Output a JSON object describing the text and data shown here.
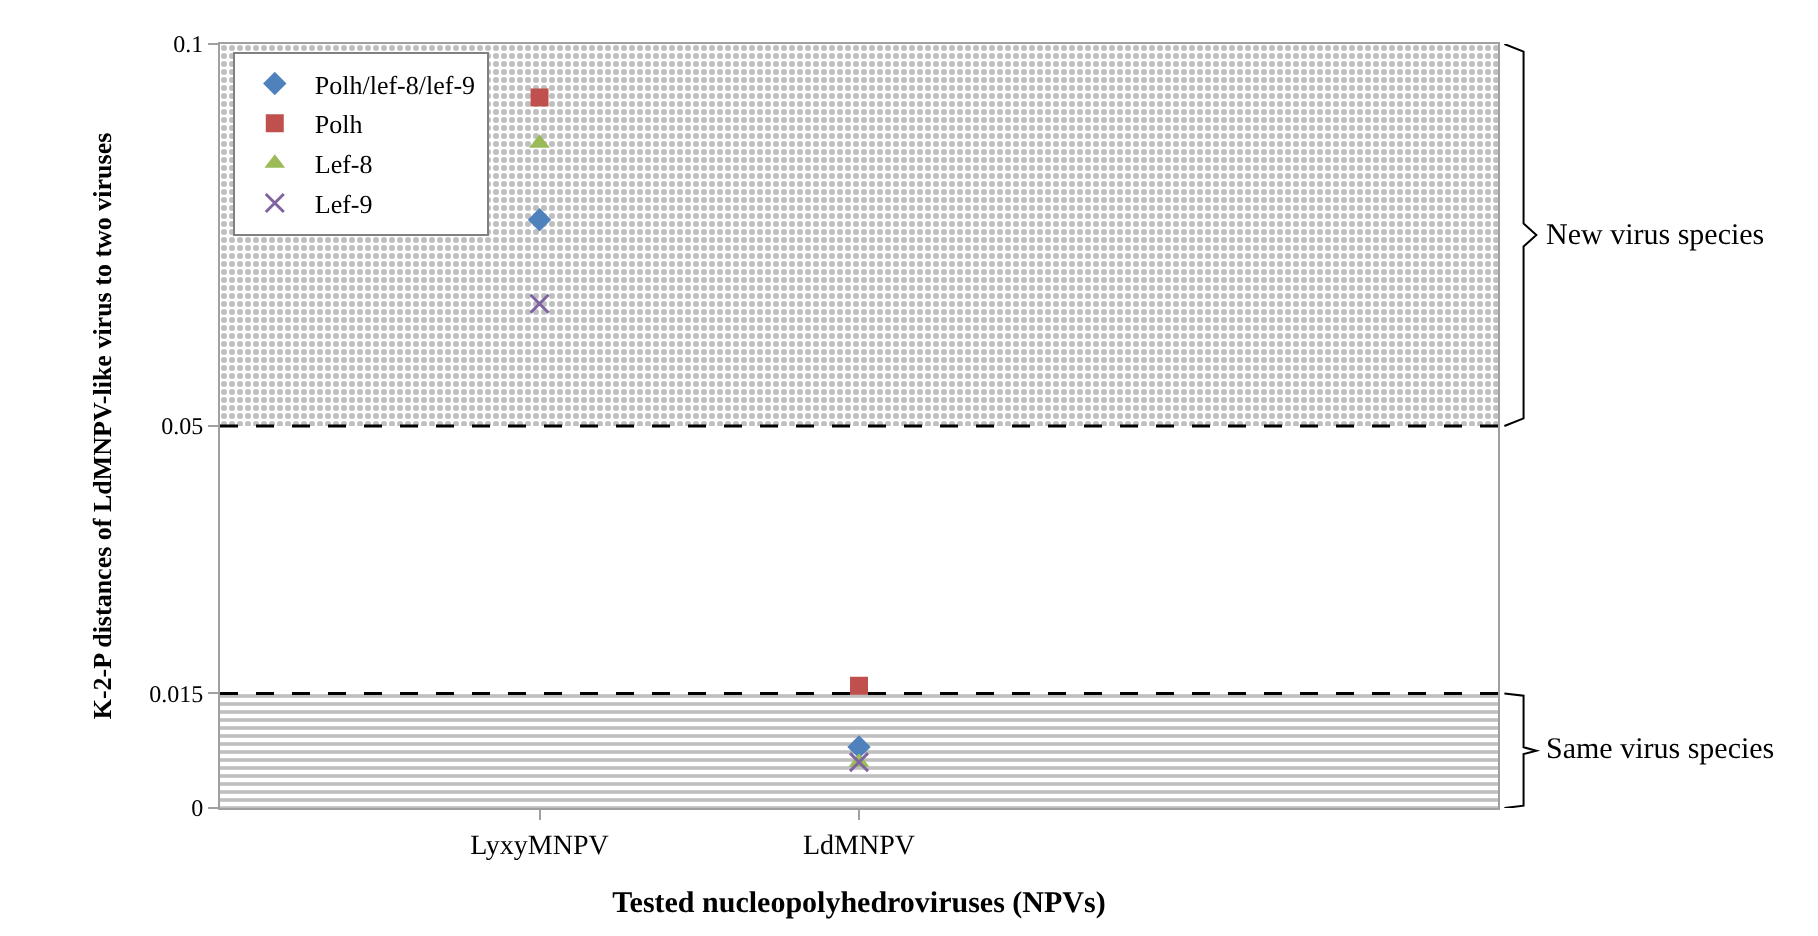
{
  "chart_data": {
    "type": "scatter",
    "xlabel": "Tested nucleopolyhedroviruses (NPVs)",
    "ylabel": "K-2-P distances of LdMNPV-like virus to two viruses",
    "categories": [
      "LyxyMNPV",
      "LdMNPV",
      null
    ],
    "series": [
      {
        "name": "Polh/lef-8/lef-9",
        "color": "#4f81bd",
        "marker": "diamond",
        "values": [
          0.077,
          0.008,
          null
        ]
      },
      {
        "name": "Polh",
        "color": "#c0504d",
        "marker": "square",
        "values": [
          0.093,
          0.016,
          null
        ]
      },
      {
        "name": "Lef-8",
        "color": "#9bbb59",
        "marker": "triangle",
        "values": [
          0.087,
          0.006,
          null
        ]
      },
      {
        "name": "Lef-9",
        "color": "#8064a2",
        "marker": "cross",
        "values": [
          0.066,
          0.006,
          null
        ]
      }
    ],
    "ylim": [
      0,
      0.1
    ],
    "yticks": [
      0,
      0.015,
      0.05,
      0.1
    ],
    "ref_lines": [
      {
        "axis": "y",
        "value": 0.05,
        "color": "#000000",
        "line_style": "dashed"
      },
      {
        "axis": "y",
        "value": 0.015,
        "color": "#000000",
        "line_style": "dashed"
      }
    ],
    "bands": [
      {
        "axis": "y",
        "from": 0.05,
        "to": 0.1,
        "label": "New virus species",
        "color": "#808080"
      },
      {
        "axis": "y",
        "from": 0,
        "to": 0.015,
        "label": "Same virus species",
        "color": "#808080"
      }
    ],
    "grid": false,
    "legend": "top left"
  }
}
